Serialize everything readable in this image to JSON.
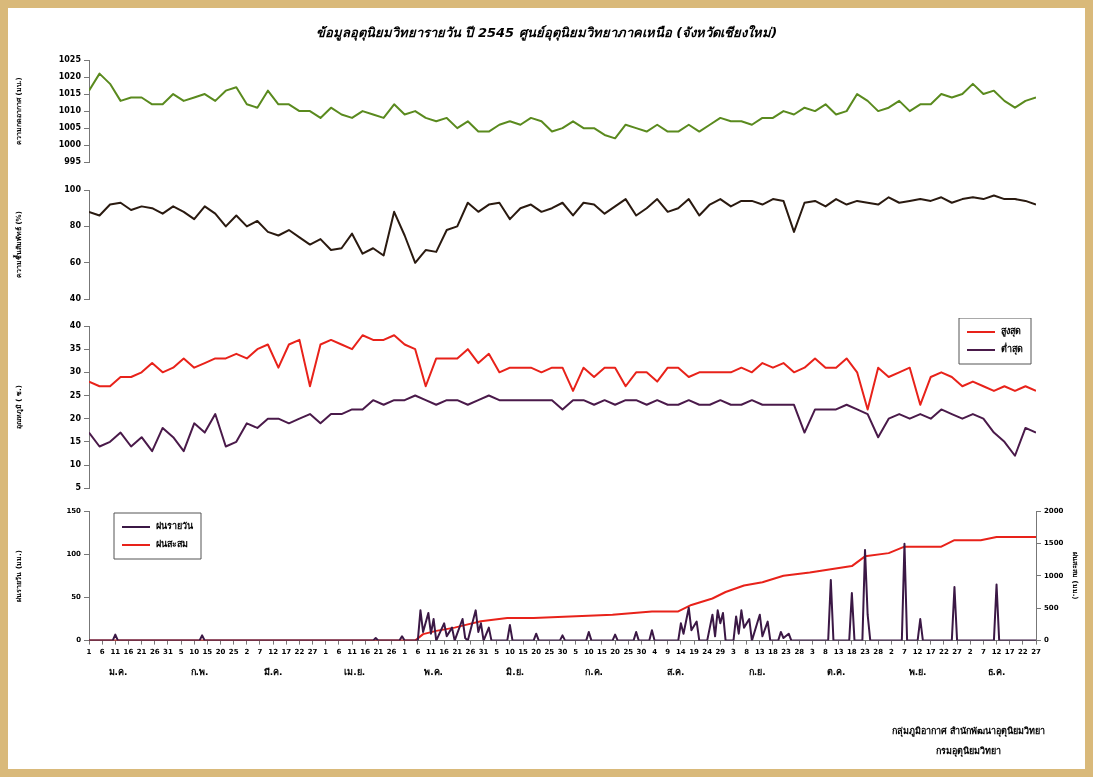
{
  "chart_data": [
    {
      "type": "line",
      "title": "ข้อมูลอุตุนิยมวิทยารายวัน ปี 2545 ศูนย์อุตุนิยมวิทยาภาคเหนือ (จังหวัดเชียงใหม่)",
      "ylabel": "ความกดอากาศ (มบ.)",
      "xlim": [
        "--01-01",
        "--12-27"
      ],
      "ylim": [
        995,
        1025
      ],
      "yticks": [
        995,
        1000,
        1005,
        1010,
        1015,
        1020,
        1025
      ],
      "tick_labels": "y",
      "marker": "none",
      "x": [
        "--01-01",
        "--01-05",
        "--01-09",
        "--01-13",
        "--01-17",
        "--01-21",
        "--01-25",
        "--01-29",
        "--02-02",
        "--02-06",
        "--02-10",
        "--02-14",
        "--02-18",
        "--02-22",
        "--02-26",
        "--03-02",
        "--03-06",
        "--03-10",
        "--03-14",
        "--03-18",
        "--03-22",
        "--03-26",
        "--03-30",
        "--04-03",
        "--04-07",
        "--04-11",
        "--04-15",
        "--04-19",
        "--04-23",
        "--04-27",
        "--05-01",
        "--05-05",
        "--05-09",
        "--05-13",
        "--05-17",
        "--05-21",
        "--05-25",
        "--05-29",
        "--06-02",
        "--06-06",
        "--06-10",
        "--06-14",
        "--06-18",
        "--06-22",
        "--06-26",
        "--06-30",
        "--07-04",
        "--07-08",
        "--07-12",
        "--07-16",
        "--07-20",
        "--07-24",
        "--07-28",
        "--08-01",
        "--08-05",
        "--08-09",
        "--08-13",
        "--08-17",
        "--08-21",
        "--08-25",
        "--08-29",
        "--09-02",
        "--09-06",
        "--09-10",
        "--09-14",
        "--09-18",
        "--09-22",
        "--09-26",
        "--09-30",
        "--10-04",
        "--10-08",
        "--10-12",
        "--10-16",
        "--10-20",
        "--10-24",
        "--10-28",
        "--11-01",
        "--11-05",
        "--11-09",
        "--11-13",
        "--11-17",
        "--11-21",
        "--11-25",
        "--11-29",
        "--12-03",
        "--12-07",
        "--12-11",
        "--12-15",
        "--12-19",
        "--12-23",
        "--12-27"
      ],
      "series": [
        {
          "color": "#5a8a1e",
          "values": [
            1016,
            1021,
            1018,
            1013,
            1014,
            1014,
            1012,
            1012,
            1015,
            1013,
            1014,
            1015,
            1013,
            1016,
            1017,
            1012,
            1011,
            1016,
            1012,
            1012,
            1010,
            1010,
            1008,
            1011,
            1009,
            1008,
            1010,
            1009,
            1008,
            1012,
            1009,
            1010,
            1008,
            1007,
            1008,
            1005,
            1007,
            1004,
            1004,
            1006,
            1007,
            1006,
            1008,
            1007,
            1004,
            1005,
            1007,
            1005,
            1005,
            1003,
            1002,
            1006,
            1005,
            1004,
            1006,
            1004,
            1004,
            1006,
            1004,
            1006,
            1008,
            1007,
            1007,
            1006,
            1008,
            1008,
            1010,
            1009,
            1011,
            1010,
            1012,
            1009,
            1010,
            1015,
            1013,
            1010,
            1011,
            1013,
            1010,
            1012,
            1012,
            1015,
            1014,
            1015,
            1018,
            1015,
            1016,
            1013,
            1011,
            1013,
            1014
          ]
        }
      ]
    },
    {
      "type": "line",
      "ylabel": "ความชื้นสัมพัทธ์ (%)",
      "xlim": [
        "--01-01",
        "--12-27"
      ],
      "ylim": [
        40,
        100
      ],
      "yticks": [
        40,
        60,
        80,
        100
      ],
      "tick_labels": "y",
      "marker": "none",
      "x": [
        "--01-01",
        "--01-05",
        "--01-09",
        "--01-13",
        "--01-17",
        "--01-21",
        "--01-25",
        "--01-29",
        "--02-02",
        "--02-06",
        "--02-10",
        "--02-14",
        "--02-18",
        "--02-22",
        "--02-26",
        "--03-02",
        "--03-06",
        "--03-10",
        "--03-14",
        "--03-18",
        "--03-22",
        "--03-26",
        "--03-30",
        "--04-03",
        "--04-07",
        "--04-11",
        "--04-15",
        "--04-19",
        "--04-23",
        "--04-27",
        "--05-01",
        "--05-05",
        "--05-09",
        "--05-13",
        "--05-17",
        "--05-21",
        "--05-25",
        "--05-29",
        "--06-02",
        "--06-06",
        "--06-10",
        "--06-14",
        "--06-18",
        "--06-22",
        "--06-26",
        "--06-30",
        "--07-04",
        "--07-08",
        "--07-12",
        "--07-16",
        "--07-20",
        "--07-24",
        "--07-28",
        "--08-01",
        "--08-05",
        "--08-09",
        "--08-13",
        "--08-17",
        "--08-21",
        "--08-25",
        "--08-29",
        "--09-02",
        "--09-06",
        "--09-10",
        "--09-14",
        "--09-18",
        "--09-22",
        "--09-26",
        "--09-30",
        "--10-04",
        "--10-08",
        "--10-12",
        "--10-16",
        "--10-20",
        "--10-24",
        "--10-28",
        "--11-01",
        "--11-05",
        "--11-09",
        "--11-13",
        "--11-17",
        "--11-21",
        "--11-25",
        "--11-29",
        "--12-03",
        "--12-07",
        "--12-11",
        "--12-15",
        "--12-19",
        "--12-23",
        "--12-27"
      ],
      "series": [
        {
          "color": "#2a1a10",
          "values": [
            88,
            86,
            92,
            93,
            89,
            91,
            90,
            87,
            91,
            88,
            84,
            91,
            87,
            80,
            86,
            80,
            83,
            77,
            75,
            78,
            74,
            70,
            73,
            67,
            68,
            76,
            65,
            68,
            64,
            88,
            75,
            60,
            67,
            66,
            78,
            80,
            93,
            88,
            92,
            93,
            84,
            90,
            92,
            88,
            90,
            93,
            86,
            93,
            92,
            87,
            91,
            95,
            86,
            90,
            95,
            88,
            90,
            95,
            86,
            92,
            95,
            91,
            94,
            94,
            92,
            95,
            94,
            77,
            93,
            94,
            91,
            95,
            92,
            94,
            93,
            92,
            96,
            93,
            94,
            95,
            94,
            96,
            93,
            95,
            96,
            95,
            97,
            95,
            95,
            94,
            92
          ]
        }
      ]
    },
    {
      "type": "line",
      "ylabel": "อุณหภูมิ ( ซ.)",
      "xlim": [
        "--01-01",
        "--12-27"
      ],
      "ylim": [
        5,
        40
      ],
      "yticks": [
        5,
        10,
        15,
        20,
        25,
        30,
        35,
        40
      ],
      "tick_labels": "y",
      "marker": "none",
      "legend": "top right",
      "x": [
        "--01-01",
        "--01-05",
        "--01-09",
        "--01-13",
        "--01-17",
        "--01-21",
        "--01-25",
        "--01-29",
        "--02-02",
        "--02-06",
        "--02-10",
        "--02-14",
        "--02-18",
        "--02-22",
        "--02-26",
        "--03-02",
        "--03-06",
        "--03-10",
        "--03-14",
        "--03-18",
        "--03-22",
        "--03-26",
        "--03-30",
        "--04-03",
        "--04-07",
        "--04-11",
        "--04-15",
        "--04-19",
        "--04-23",
        "--04-27",
        "--05-01",
        "--05-05",
        "--05-09",
        "--05-13",
        "--05-17",
        "--05-21",
        "--05-25",
        "--05-29",
        "--06-02",
        "--06-06",
        "--06-10",
        "--06-14",
        "--06-18",
        "--06-22",
        "--06-26",
        "--06-30",
        "--07-04",
        "--07-08",
        "--07-12",
        "--07-16",
        "--07-20",
        "--07-24",
        "--07-28",
        "--08-01",
        "--08-05",
        "--08-09",
        "--08-13",
        "--08-17",
        "--08-21",
        "--08-25",
        "--08-29",
        "--09-02",
        "--09-06",
        "--09-10",
        "--09-14",
        "--09-18",
        "--09-22",
        "--09-26",
        "--09-30",
        "--10-04",
        "--10-08",
        "--10-12",
        "--10-16",
        "--10-20",
        "--10-24",
        "--10-28",
        "--11-01",
        "--11-05",
        "--11-09",
        "--11-13",
        "--11-17",
        "--11-21",
        "--11-25",
        "--11-29",
        "--12-03",
        "--12-07",
        "--12-11",
        "--12-15",
        "--12-19",
        "--12-23",
        "--12-27"
      ],
      "series": [
        {
          "name": "สูงสุด",
          "color": "#e8221a",
          "values": [
            28,
            27,
            27,
            29,
            29,
            30,
            32,
            30,
            31,
            33,
            31,
            32,
            33,
            33,
            34,
            33,
            35,
            36,
            31,
            36,
            37,
            27,
            36,
            37,
            36,
            35,
            38,
            37,
            37,
            38,
            36,
            35,
            27,
            33,
            33,
            33,
            35,
            32,
            34,
            30,
            31,
            31,
            31,
            30,
            31,
            31,
            26,
            31,
            29,
            31,
            31,
            27,
            30,
            30,
            28,
            31,
            31,
            29,
            30,
            30,
            30,
            30,
            31,
            30,
            32,
            31,
            32,
            30,
            31,
            33,
            31,
            31,
            33,
            30,
            22,
            31,
            29,
            30,
            31,
            23,
            29,
            30,
            29,
            27,
            28,
            27,
            26,
            27,
            26,
            27,
            26
          ]
        },
        {
          "name": "ต่ำสุด",
          "color": "#4a1a4a",
          "values": [
            17,
            14,
            15,
            17,
            14,
            16,
            13,
            18,
            16,
            13,
            19,
            17,
            21,
            14,
            15,
            19,
            18,
            20,
            20,
            19,
            20,
            21,
            19,
            21,
            21,
            22,
            22,
            24,
            23,
            24,
            24,
            25,
            24,
            23,
            24,
            24,
            23,
            24,
            25,
            24,
            24,
            24,
            24,
            24,
            24,
            22,
            24,
            24,
            23,
            24,
            23,
            24,
            24,
            23,
            24,
            23,
            23,
            24,
            23,
            23,
            24,
            23,
            23,
            24,
            23,
            23,
            23,
            23,
            17,
            22,
            22,
            22,
            23,
            22,
            21,
            16,
            20,
            21,
            20,
            21,
            20,
            22,
            21,
            20,
            21,
            20,
            17,
            15,
            12,
            18,
            17
          ]
        }
      ]
    },
    {
      "type": "line",
      "ylabel": "ฝนรายวัน (มม.)",
      "y2label": "ฝนสะสม (มม.)",
      "xlim": [
        "--01-01",
        "--12-27"
      ],
      "ylim": [
        0,
        150
      ],
      "yticks": [
        0,
        50,
        100,
        150
      ],
      "y2lim": [
        0,
        2000
      ],
      "y2ticks": [
        0,
        500,
        1000,
        1500,
        2000
      ],
      "marker": "none",
      "legend": "top left",
      "xticks": [
        {
          "value": "--01-01",
          "label": "1"
        },
        {
          "value": "--01-06",
          "label": "6"
        },
        {
          "value": "--01-11",
          "label": "11"
        },
        {
          "value": "--01-16",
          "label": "16"
        },
        {
          "value": "--01-21",
          "label": "21"
        },
        {
          "value": "--01-26",
          "label": "26"
        },
        {
          "value": "--01-31",
          "label": "31"
        },
        {
          "value": "--02-05",
          "label": "5"
        },
        {
          "value": "--02-10",
          "label": "10"
        },
        {
          "value": "--02-15",
          "label": "15"
        },
        {
          "value": "--02-20",
          "label": "20"
        },
        {
          "value": "--02-25",
          "label": "25"
        },
        {
          "value": "--03-02",
          "label": "2"
        },
        {
          "value": "--03-07",
          "label": "7"
        },
        {
          "value": "--03-12",
          "label": "12"
        },
        {
          "value": "--03-17",
          "label": "17"
        },
        {
          "value": "--03-22",
          "label": "22"
        },
        {
          "value": "--03-27",
          "label": "27"
        },
        {
          "value": "--04-01",
          "label": "1"
        },
        {
          "value": "--04-06",
          "label": "6"
        },
        {
          "value": "--04-11",
          "label": "11"
        },
        {
          "value": "--04-16",
          "label": "16"
        },
        {
          "value": "--04-21",
          "label": "21"
        },
        {
          "value": "--04-26",
          "label": "26"
        },
        {
          "value": "--05-01",
          "label": "1"
        },
        {
          "value": "--05-06",
          "label": "6"
        },
        {
          "value": "--05-11",
          "label": "11"
        },
        {
          "value": "--05-16",
          "label": "16"
        },
        {
          "value": "--05-21",
          "label": "21"
        },
        {
          "value": "--05-26",
          "label": "26"
        },
        {
          "value": "--05-31",
          "label": "31"
        },
        {
          "value": "--06-05",
          "label": "5"
        },
        {
          "value": "--06-10",
          "label": "10"
        },
        {
          "value": "--06-15",
          "label": "15"
        },
        {
          "value": "--06-20",
          "label": "20"
        },
        {
          "value": "--06-25",
          "label": "25"
        },
        {
          "value": "--06-30",
          "label": "30"
        },
        {
          "value": "--07-05",
          "label": "5"
        },
        {
          "value": "--07-10",
          "label": "10"
        },
        {
          "value": "--07-15",
          "label": "15"
        },
        {
          "value": "--07-20",
          "label": "20"
        },
        {
          "value": "--07-25",
          "label": "25"
        },
        {
          "value": "--07-30",
          "label": "30"
        },
        {
          "value": "--08-04",
          "label": "4"
        },
        {
          "value": "--08-09",
          "label": "9"
        },
        {
          "value": "--08-14",
          "label": "14"
        },
        {
          "value": "--08-19",
          "label": "19"
        },
        {
          "value": "--08-24",
          "label": "24"
        },
        {
          "value": "--08-29",
          "label": "29"
        },
        {
          "value": "--09-03",
          "label": "3"
        },
        {
          "value": "--09-08",
          "label": "8"
        },
        {
          "value": "--09-13",
          "label": "13"
        },
        {
          "value": "--09-18",
          "label": "18"
        },
        {
          "value": "--09-23",
          "label": "23"
        },
        {
          "value": "--09-28",
          "label": "28"
        },
        {
          "value": "--10-03",
          "label": "3"
        },
        {
          "value": "--10-08",
          "label": "8"
        },
        {
          "value": "--10-13",
          "label": "13"
        },
        {
          "value": "--10-18",
          "label": "18"
        },
        {
          "value": "--10-23",
          "label": "23"
        },
        {
          "value": "--10-28",
          "label": "28"
        },
        {
          "value": "--11-02",
          "label": "2"
        },
        {
          "value": "--11-07",
          "label": "7"
        },
        {
          "value": "--11-12",
          "label": "12"
        },
        {
          "value": "--11-17",
          "label": "17"
        },
        {
          "value": "--11-22",
          "label": "22"
        },
        {
          "value": "--11-27",
          "label": "27"
        },
        {
          "value": "--12-02",
          "label": "2"
        },
        {
          "value": "--12-07",
          "label": "7"
        },
        {
          "value": "--12-12",
          "label": "12"
        },
        {
          "value": "--12-17",
          "label": "17"
        },
        {
          "value": "--12-22",
          "label": "22"
        },
        {
          "value": "--12-27",
          "label": "27"
        }
      ],
      "annotations": [
        "ม.ค.",
        "ก.พ.",
        "มี.ค.",
        "เม.ย.",
        "พ.ค.",
        "มิ.ย.",
        "ก.ค.",
        "ส.ค.",
        "ก.ย.",
        "ต.ค.",
        "พ.ย.",
        "ธ.ค.",
        "กลุ่มภูมิอากาศ สำนักพัฒนาอุตุนิยมวิทยา",
        "กรมอุตุนิยมวิทยา"
      ],
      "series": [
        {
          "name": "ฝนรายวัน",
          "color": "#3b1845",
          "x": [
            "--01-01",
            "--01-10",
            "--01-11",
            "--01-12",
            "--02-12",
            "--02-13",
            "--02-14",
            "--04-19",
            "--04-20",
            "--04-21",
            "--04-29",
            "--04-30",
            "--05-01",
            "--05-06",
            "--05-07",
            "--05-08",
            "--05-10",
            "--05-11",
            "--05-12",
            "--05-13",
            "--05-16",
            "--05-17",
            "--05-19",
            "--05-20",
            "--05-23",
            "--05-24",
            "--05-25",
            "--05-28",
            "--05-29",
            "--05-30",
            "--05-31",
            "--06-02",
            "--06-03",
            "--06-09",
            "--06-10",
            "--06-11",
            "--06-19",
            "--06-20",
            "--06-21",
            "--06-29",
            "--06-30",
            "--07-01",
            "--07-09",
            "--07-10",
            "--07-11",
            "--07-19",
            "--07-20",
            "--07-21",
            "--07-27",
            "--07-28",
            "--07-29",
            "--08-02",
            "--08-03",
            "--08-04",
            "--08-13",
            "--08-14",
            "--08-15",
            "--08-17",
            "--08-18",
            "--08-20",
            "--08-21",
            "--08-24",
            "--08-25",
            "--08-26",
            "--08-27",
            "--08-28",
            "--08-29",
            "--08-30",
            "--08-31",
            "--09-03",
            "--09-04",
            "--09-05",
            "--09-06",
            "--09-07",
            "--09-09",
            "--09-10",
            "--09-12",
            "--09-13",
            "--09-14",
            "--09-16",
            "--09-17",
            "--09-20",
            "--09-21",
            "--09-22",
            "--09-24",
            "--09-25",
            "--10-09",
            "--10-10",
            "--10-11",
            "--10-17",
            "--10-18",
            "--10-19",
            "--10-22",
            "--10-23",
            "--10-24",
            "--10-25",
            "--11-06",
            "--11-07",
            "--11-08",
            "--11-12",
            "--11-13",
            "--11-14",
            "--11-25",
            "--11-26",
            "--11-27",
            "--12-11",
            "--12-12",
            "--12-13",
            "--12-27"
          ],
          "values": [
            0,
            0,
            7,
            0,
            0,
            6,
            0,
            0,
            3,
            0,
            0,
            5,
            0,
            0,
            35,
            10,
            32,
            8,
            25,
            0,
            20,
            5,
            15,
            0,
            25,
            3,
            0,
            35,
            10,
            20,
            0,
            15,
            0,
            0,
            18,
            0,
            0,
            8,
            0,
            0,
            6,
            0,
            0,
            10,
            0,
            0,
            7,
            0,
            0,
            10,
            0,
            0,
            12,
            0,
            0,
            20,
            8,
            38,
            12,
            22,
            0,
            0,
            15,
            30,
            5,
            35,
            20,
            32,
            0,
            0,
            28,
            8,
            35,
            15,
            25,
            0,
            20,
            30,
            5,
            22,
            0,
            0,
            10,
            3,
            8,
            0,
            0,
            70,
            0,
            0,
            55,
            0,
            0,
            105,
            30,
            0,
            0,
            112,
            0,
            0,
            25,
            0,
            0,
            62,
            0,
            0,
            65,
            0,
            0
          ]
        },
        {
          "name": "ฝนสะสม",
          "color": "#e8221a",
          "axis": "y2",
          "x": [
            "--01-01",
            "--04-20",
            "--05-05",
            "--05-08",
            "--05-13",
            "--05-20",
            "--05-25",
            "--05-30",
            "--06-09",
            "--06-19",
            "--07-19",
            "--08-03",
            "--08-13",
            "--08-18",
            "--08-26",
            "--08-31",
            "--09-07",
            "--09-14",
            "--09-22",
            "--10-02",
            "--10-10",
            "--10-18",
            "--10-23",
            "--11-01",
            "--11-07",
            "--11-21",
            "--11-26",
            "--12-06",
            "--12-12",
            "--12-27"
          ],
          "values": [
            0,
            0,
            0,
            100,
            150,
            200,
            250,
            300,
            350,
            350,
            400,
            450,
            450,
            550,
            650,
            750,
            850,
            900,
            1000,
            1050,
            1100,
            1150,
            1300,
            1350,
            1450,
            1450,
            1550,
            1550,
            1600,
            1600
          ]
        }
      ]
    }
  ]
}
